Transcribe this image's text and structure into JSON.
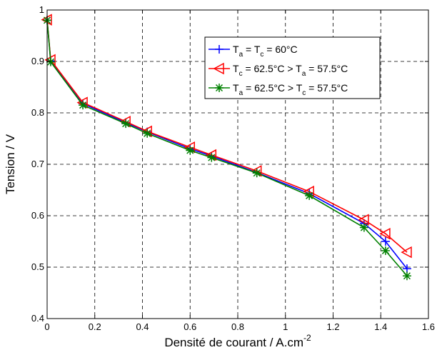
{
  "chart_data": {
    "type": "line",
    "xlabel": "Densité de courant / A.cm",
    "xlabel_sup": "-2",
    "ylabel": "Tension / V",
    "xlim": [
      0,
      1.6
    ],
    "ylim": [
      0.4,
      1.0
    ],
    "xticks": [
      "0",
      "0.2",
      "0.4",
      "0.6",
      "0.8",
      "1",
      "1.2",
      "1.4",
      "1.6"
    ],
    "yticks": [
      "0.4",
      "0.5",
      "0.6",
      "0.7",
      "0.8",
      "0.9",
      "1"
    ],
    "grid": true,
    "legend_position": "top-right",
    "series": [
      {
        "name": "Ta = Tc = 60°C",
        "legend": {
          "p1": "T",
          "s1": "a",
          "p2": " = T",
          "s2": "c",
          "p3": " = 60°C"
        },
        "color": "#0000ff",
        "marker": "plus",
        "x": [
          0.0,
          0.015,
          0.15,
          0.33,
          0.42,
          0.6,
          0.69,
          0.88,
          1.1,
          1.33,
          1.42,
          1.51
        ],
        "y": [
          0.98,
          0.901,
          0.818,
          0.781,
          0.763,
          0.73,
          0.716,
          0.684,
          0.643,
          0.585,
          0.55,
          0.497
        ]
      },
      {
        "name": "Tc = 62.5°C > Ta = 57.5°C",
        "legend": {
          "p1": "T",
          "s1": "c",
          "p2": " = 62.5°C > T",
          "s2": "a",
          "p3": " = 57.5°C"
        },
        "color": "#ff0000",
        "marker": "triangle-left",
        "x": [
          0.0,
          0.015,
          0.15,
          0.33,
          0.42,
          0.6,
          0.69,
          0.88,
          1.1,
          1.33,
          1.42,
          1.51
        ],
        "y": [
          0.981,
          0.903,
          0.82,
          0.783,
          0.764,
          0.733,
          0.718,
          0.687,
          0.647,
          0.592,
          0.565,
          0.529
        ]
      },
      {
        "name": "Ta = 62.5°C > Tc = 57.5°C",
        "legend": {
          "p1": "T",
          "s1": "a",
          "p2": " = 62.5°C > T",
          "s2": "c",
          "p3": " = 57.5°C"
        },
        "color": "#008000",
        "marker": "asterisk",
        "x": [
          0.0,
          0.015,
          0.15,
          0.33,
          0.42,
          0.6,
          0.69,
          0.88,
          1.1,
          1.33,
          1.42,
          1.51
        ],
        "y": [
          0.98,
          0.899,
          0.815,
          0.779,
          0.76,
          0.727,
          0.713,
          0.683,
          0.639,
          0.577,
          0.532,
          0.483
        ]
      }
    ]
  }
}
